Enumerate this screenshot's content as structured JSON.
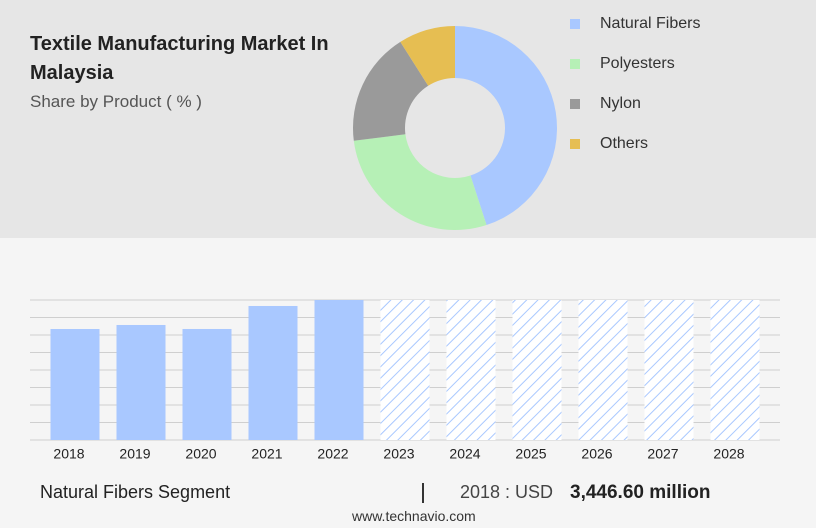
{
  "chart_data": [
    {
      "type": "donut",
      "title": "Textile Manufacturing Market In Malaysia",
      "subtitle": "Share by Product ( % )",
      "categories": [
        "Natural Fibers",
        "Polyesters",
        "Nylon",
        "Others"
      ],
      "values": [
        45,
        28,
        18,
        9
      ],
      "colors": [
        "#a9c8ff",
        "#b6f0b6",
        "#9a9a9a",
        "#e6be52"
      ],
      "legend": "right"
    },
    {
      "type": "bar",
      "categories": [
        "2018",
        "2019",
        "2020",
        "2021",
        "2022",
        "2023",
        "2024",
        "2025",
        "2026",
        "2027",
        "2028"
      ],
      "values": [
        3446.6,
        3571,
        3447,
        4161,
        4347,
        null,
        null,
        null,
        null,
        null,
        null
      ],
      "color": "#a9c8ff",
      "ylim": [
        0,
        4347
      ],
      "grid": true
    }
  ],
  "footer": {
    "segment": "Natural Fibers Segment",
    "year_label": "2018 : USD",
    "value": "3,446.60 million",
    "source": "www.technavio.com"
  }
}
